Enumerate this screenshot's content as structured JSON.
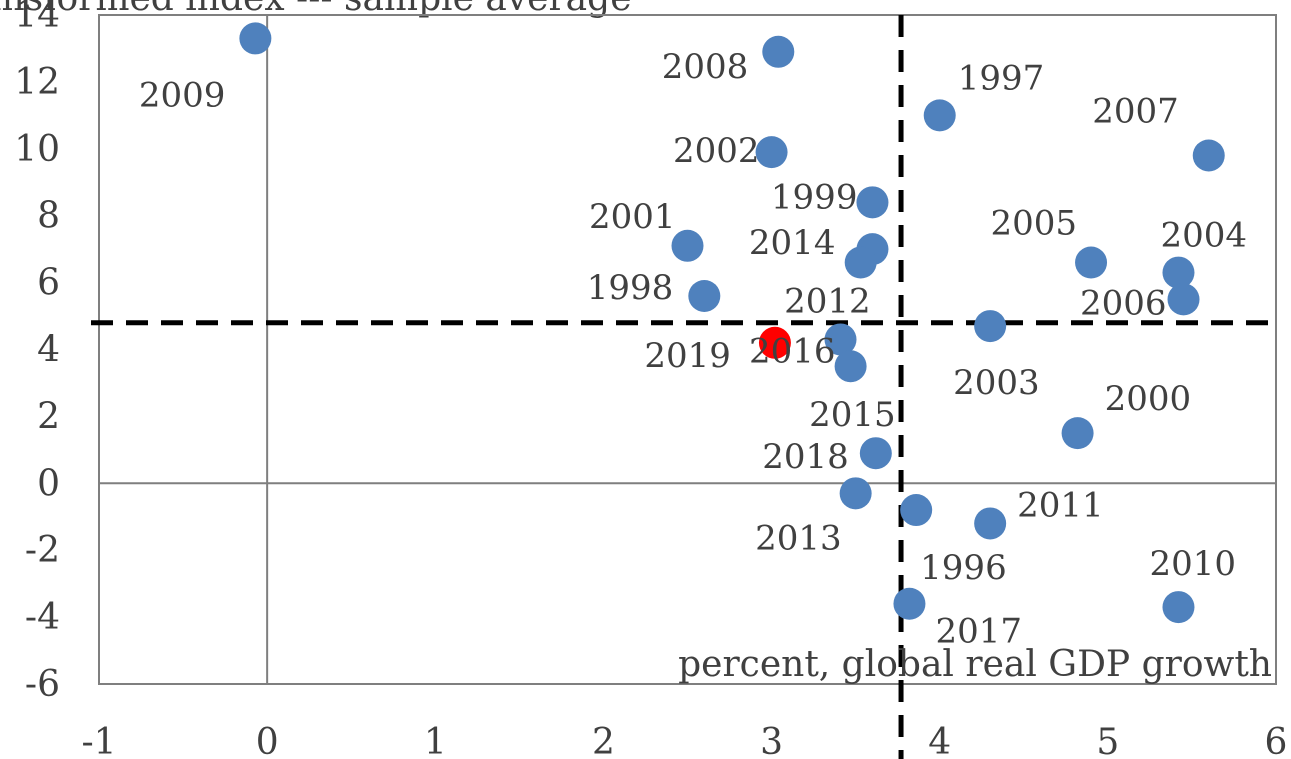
{
  "chart_data": {
    "type": "scatter",
    "header_fragment": "ansformed index     --- sample average",
    "annotation": "percent, global real GDP growth",
    "xlim": [
      -1,
      6
    ],
    "ylim": [
      -6,
      14
    ],
    "x_ticks": [
      "-1",
      "0",
      "1",
      "2",
      "3",
      "4",
      "5",
      "6"
    ],
    "y_ticks": [
      "-6",
      "-4",
      "-2",
      "0",
      "2",
      "4",
      "6",
      "8",
      "10",
      "12",
      "14"
    ],
    "reference_lines": {
      "x_sample_average": 3.77,
      "y_sample_average": 4.8
    },
    "colors": {
      "series": "#4f81bd",
      "highlight": "#ff0000",
      "axis": "#7f7f7f",
      "average": "#000000"
    },
    "points": [
      {
        "label": "2009",
        "x": -0.07,
        "y": 13.3
      },
      {
        "label": "2008",
        "x": 3.04,
        "y": 12.9
      },
      {
        "label": "1997",
        "x": 4.0,
        "y": 11.0
      },
      {
        "label": "2007",
        "x": 5.6,
        "y": 9.8
      },
      {
        "label": "2002",
        "x": 3.0,
        "y": 9.9
      },
      {
        "label": "1999",
        "x": 3.6,
        "y": 8.4
      },
      {
        "label": "2001",
        "x": 2.5,
        "y": 7.1
      },
      {
        "label": "2014",
        "x": 3.6,
        "y": 7.0
      },
      {
        "label": "2012",
        "x": 3.53,
        "y": 6.6
      },
      {
        "label": "2005",
        "x": 4.9,
        "y": 6.6
      },
      {
        "label": "2004",
        "x": 5.42,
        "y": 6.3
      },
      {
        "label": "2006",
        "x": 5.45,
        "y": 5.5
      },
      {
        "label": "1998",
        "x": 2.6,
        "y": 5.6
      },
      {
        "label": "2003",
        "x": 4.3,
        "y": 4.7
      },
      {
        "label": "2019",
        "x": 3.02,
        "y": 4.2,
        "highlight": true
      },
      {
        "label": "2016",
        "x": 3.41,
        "y": 4.3
      },
      {
        "label": "2015",
        "x": 3.47,
        "y": 3.5
      },
      {
        "label": "2000",
        "x": 4.82,
        "y": 1.5
      },
      {
        "label": "2018",
        "x": 3.62,
        "y": 0.9
      },
      {
        "label": "2013",
        "x": 3.5,
        "y": -0.3
      },
      {
        "label": "1996",
        "x": 3.86,
        "y": -0.8
      },
      {
        "label": "2011",
        "x": 4.3,
        "y": -1.2
      },
      {
        "label": "2017",
        "x": 3.82,
        "y": -3.6
      },
      {
        "label": "2010",
        "x": 5.42,
        "y": -3.7
      }
    ]
  }
}
